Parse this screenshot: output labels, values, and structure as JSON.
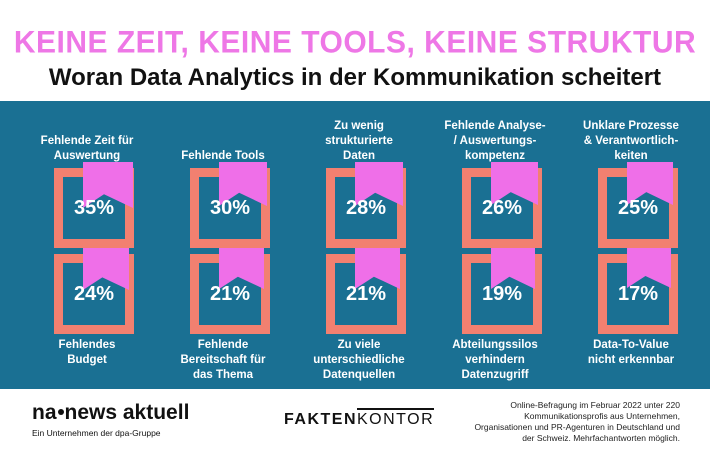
{
  "title": "KEINE ZEIT, KEINE TOOLS, KEINE STRUKTUR",
  "subtitle": "Woran Data Analytics in der Kommunikation scheitert",
  "colors": {
    "accent": "#ee77e6",
    "panel": "#1a7093",
    "frame": "#f28070",
    "flag": "#ef6fe8"
  },
  "chart_data": {
    "type": "bar",
    "title": "KEINE ZEIT, KEINE TOOLS, KEINE STRUKTUR",
    "subtitle": "Woran Data Analytics in der Kommunikation scheitert",
    "unit": "%",
    "categories": [
      "Fehlende Zeit für Auswertung",
      "Fehlende Tools",
      "Zu wenig strukturierte Daten",
      "Fehlende Analyse- / Auswertungs- kompetenz",
      "Unklare Prozesse & Verantwortlich- keiten",
      "Fehlendes Budget",
      "Fehlende Bereitschaft für das Thema",
      "Zu viele unterschiedliche Datenquellen",
      "Abteilungssilos verhindern Datenzugriff",
      "Data-To-Value nicht erkennbar"
    ],
    "values": [
      35,
      30,
      28,
      26,
      25,
      24,
      21,
      21,
      19,
      17
    ],
    "value_labels": [
      "35%",
      "30%",
      "28%",
      "26%",
      "25%",
      "24%",
      "21%",
      "21%",
      "19%",
      "17%"
    ],
    "display_labels": [
      "Fehlende Zeit für\nAuswertung",
      "Fehlende Tools",
      "Zu wenig\nstrukturierte\nDaten",
      "Fehlende Analyse-\n/ Auswertungs-\nkompetenz",
      "Unklare Prozesse\n& Verantwortlich-\nkeiten",
      "Fehlendes\nBudget",
      "Fehlende\nBereitschaft für\ndas Thema",
      "Zu viele\nunterschiedliche\nDatenquellen",
      "Abteilungssilos\nverhindern\nDatenzugriff",
      "Data-To-Value\nnicht erkennbar"
    ]
  },
  "footer": {
    "logo_left_a": "na",
    "logo_left_b": "news aktuell",
    "logo_left_sub": "Ein Unternehmen der dpa-Gruppe",
    "logo_mid_a": "FAKTEN",
    "logo_mid_b": "KONTOR",
    "note": "Online-Befragung im Februar 2022 unter 220 Kommunikationsprofis aus Unternehmen, Organisationen und PR-Agenturen in Deutschland und der Schweiz. Mehrfachantworten möglich."
  }
}
